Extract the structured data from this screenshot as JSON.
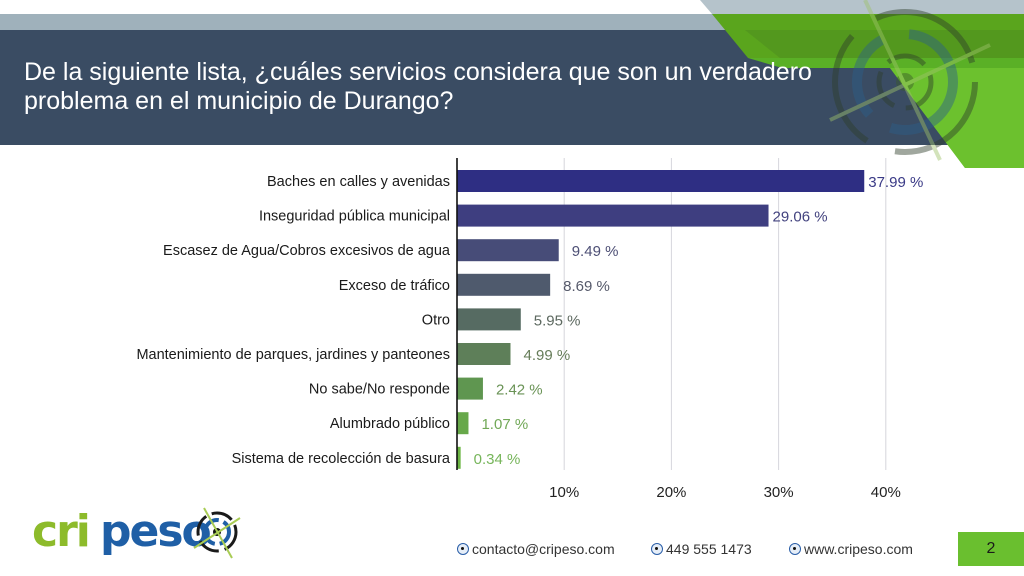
{
  "slide": {
    "title": "De la siguiente lista, ¿cuáles servicios considera que son un verdadero problema en el municipio de Durango?",
    "page_number": "2"
  },
  "footer": {
    "logo_text_green": "cri",
    "logo_text_blue": "peso",
    "email": "contacto@cripeso.com",
    "phone": "449 555 1473",
    "website": "www.cripeso.com"
  },
  "colors": {
    "title_band": "#3a4c63",
    "accent_green": "#6abf2f",
    "bar_colors": [
      "#2e2e83",
      "#3e3e80",
      "#474c78",
      "#4f5a6d",
      "#566b62",
      "#5e7f59",
      "#5f9650",
      "#67a84a",
      "#6cb544"
    ],
    "label_colors": [
      "#3a3a86",
      "#43437f",
      "#4d4f75",
      "#55596a",
      "#5d6960",
      "#657c58",
      "#6a9356",
      "#71a857",
      "#76b55a"
    ]
  },
  "chart_data": {
    "type": "bar",
    "orientation": "horizontal",
    "title": "De la siguiente lista, ¿cuáles servicios considera que son un verdadero problema en el municipio de Durango?",
    "xlabel": "",
    "ylabel": "",
    "categories": [
      "Baches en calles y avenidas",
      "Inseguridad pública municipal",
      "Escasez de Agua/Cobros excesivos de agua",
      "Exceso de tráfico",
      "Otro",
      "Mantenimiento de parques, jardines y panteones",
      "No sabe/No responde",
      "Alumbrado público",
      "Sistema de recolección de basura"
    ],
    "values": [
      37.99,
      29.06,
      9.49,
      8.69,
      5.95,
      4.99,
      2.42,
      1.07,
      0.34
    ],
    "value_labels": [
      "37.99 %",
      "29.06 %",
      "9.49 %",
      "8.69 %",
      "5.95 %",
      "4.99 %",
      "2.42 %",
      "1.07 %",
      "0.34 %"
    ],
    "xlim": [
      0,
      42
    ],
    "x_ticks": [
      10,
      20,
      30,
      40
    ],
    "x_tick_labels": [
      "10%",
      "20%",
      "30%",
      "40%"
    ],
    "grid": "vertical",
    "legend": "none"
  }
}
